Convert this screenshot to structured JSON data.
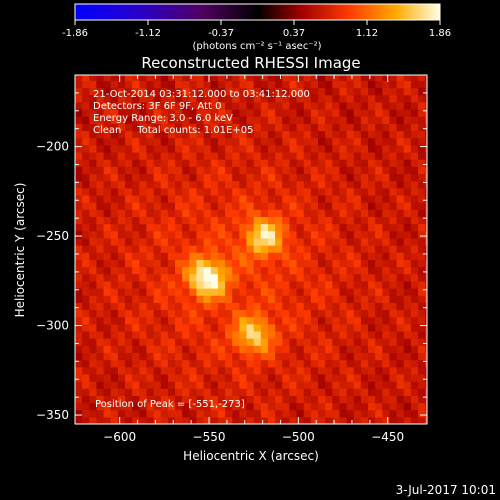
{
  "chart_data": {
    "type": "heatmap",
    "title": "Reconstructed RHESSI Image",
    "xlabel": "Heliocentric X (arcsec)",
    "ylabel": "Heliocentric Y (arcsec)",
    "xlim": [
      -625,
      -428
    ],
    "ylim": [
      -355,
      -160
    ],
    "x_ticks": [
      -600,
      -550,
      -500,
      -450
    ],
    "y_ticks": [
      -350,
      -300,
      -250,
      -200
    ],
    "colorbar": {
      "ticks": [
        "-1.86",
        "-1.12",
        "-0.37",
        "0.37",
        "1.12",
        "1.86"
      ],
      "range": [
        -1.86,
        1.86
      ],
      "unit_label": "(photons cm⁻² s⁻¹ asec⁻²)"
    },
    "info_lines": [
      "21-Oct-2014 03:31:12.000 to 03:41:12.000",
      "Detectors: 3F 6F 9F, Att 0",
      "Energy Range: 3.0 - 6.0 keV",
      "Clean     Total counts: 1.01E+05"
    ],
    "peak_label": "Position of Peak = [-551,-273]",
    "sources": [
      {
        "x": -551,
        "y": -273,
        "peak": 1.86
      },
      {
        "x": -519,
        "y": -250,
        "peak": 1.62
      },
      {
        "x": -525,
        "y": -305,
        "peak": 1.55
      }
    ],
    "background_level": 0.75
  },
  "footer": {
    "date": "3-Jul-2017 10:01"
  }
}
